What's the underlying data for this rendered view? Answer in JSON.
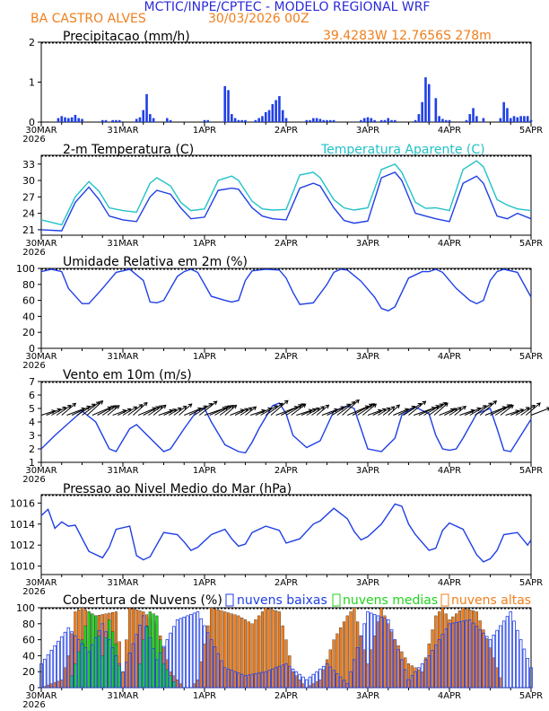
{
  "header": {
    "title": "MCTIC/INPE/CPTEC - MODELO REGIONAL WRF",
    "location": "BA CASTRO ALVES",
    "run": "30/03/2026 00Z",
    "coords": "39.4283W 12.7656S 278m"
  },
  "colors": {
    "blue": "#1f3fe6",
    "orange": "#f07f1e",
    "cyan": "#22c2c8",
    "green": "#22d31e",
    "black": "#000000",
    "title": "#2a2ad8"
  },
  "x_labels": [
    "30MAR",
    "31MAR",
    "1APR",
    "2APR",
    "3APR",
    "4APR",
    "5APR"
  ],
  "year_label": "2026",
  "chart_data": [
    {
      "type": "bar",
      "title": "Precipitacao (mm/h)",
      "ylim": [
        0,
        2
      ],
      "yticks": [
        0,
        1,
        2
      ],
      "hours": [
        5,
        6,
        7,
        8,
        9,
        10,
        11,
        12,
        18,
        19,
        21,
        22,
        23,
        28,
        29,
        30,
        31,
        32,
        33,
        37,
        38,
        48,
        49,
        54,
        55,
        56,
        57,
        58,
        59,
        60,
        63,
        64,
        65,
        66,
        67,
        68,
        69,
        70,
        71,
        72,
        78,
        79,
        80,
        81,
        82,
        83,
        84,
        85,
        86,
        94,
        95,
        96,
        97,
        98,
        100,
        101,
        102,
        103,
        104,
        110,
        111,
        112,
        113,
        114,
        116,
        117,
        118,
        119,
        120,
        125,
        126,
        127,
        128,
        130,
        135,
        136,
        137,
        138,
        139,
        140,
        141,
        142,
        143,
        144
      ],
      "values": [
        0.1,
        0.15,
        0.12,
        0.1,
        0.12,
        0.18,
        0.1,
        0.08,
        0.05,
        0.05,
        0.05,
        0.05,
        0.05,
        0.08,
        0.12,
        0.3,
        0.7,
        0.2,
        0.1,
        0.1,
        0.05,
        0.05,
        0.05,
        0.9,
        0.8,
        0.2,
        0.1,
        0.05,
        0.05,
        0.05,
        0.05,
        0.1,
        0.15,
        0.25,
        0.3,
        0.45,
        0.55,
        0.65,
        0.3,
        0.1,
        0.05,
        0.05,
        0.1,
        0.1,
        0.08,
        0.05,
        0.05,
        0.05,
        0.05,
        0.05,
        0.1,
        0.12,
        0.1,
        0.05,
        0.05,
        0.05,
        0.1,
        0.05,
        0.05,
        0.05,
        0.2,
        0.5,
        1.12,
        0.95,
        0.6,
        0.15,
        0.08,
        0.05,
        0.05,
        0.05,
        0.2,
        0.35,
        0.15,
        0.1,
        0.1,
        0.5,
        0.35,
        0.1,
        0.15,
        0.12,
        0.15,
        0.15,
        0.15,
        0.05
      ]
    },
    {
      "type": "line",
      "title": "2-m Temperatura (C)",
      "legend": "Temperatura Aparente (C)",
      "ylim": [
        20,
        34.6
      ],
      "yticks": [
        21,
        24,
        27,
        30,
        33
      ],
      "series": [
        {
          "name": "2-m Temperatura (C)",
          "color": "blue",
          "x": [
            0,
            6,
            10,
            14,
            17,
            20,
            24,
            28,
            32,
            34,
            38,
            41,
            44,
            48,
            52,
            56,
            58,
            62,
            65,
            68,
            72,
            76,
            80,
            82,
            86,
            89,
            92,
            96,
            100,
            104,
            106,
            110,
            113,
            116,
            120,
            124,
            128,
            130,
            134,
            137,
            140,
            144
          ],
          "values": [
            21.0,
            20.8,
            26.0,
            28.8,
            26.5,
            23.5,
            22.8,
            22.5,
            27.0,
            28.2,
            27.5,
            25.0,
            23.0,
            23.3,
            28.2,
            28.6,
            28.4,
            25.0,
            23.5,
            23.0,
            22.8,
            28.6,
            29.5,
            29.0,
            25.0,
            22.7,
            22.2,
            22.6,
            30.5,
            31.5,
            30.0,
            24.0,
            23.5,
            23.0,
            22.5,
            29.5,
            30.8,
            29.5,
            23.5,
            23.0,
            24.0,
            23.0
          ]
        },
        {
          "name": "Temperatura Aparente (C)",
          "color": "cyan",
          "x": [
            0,
            6,
            10,
            14,
            17,
            20,
            24,
            28,
            32,
            34,
            38,
            41,
            44,
            48,
            52,
            56,
            58,
            62,
            65,
            68,
            72,
            76,
            80,
            82,
            86,
            89,
            92,
            96,
            100,
            104,
            106,
            110,
            113,
            116,
            120,
            124,
            128,
            130,
            134,
            137,
            140,
            144
          ],
          "values": [
            22.8,
            21.9,
            27.0,
            29.8,
            28.0,
            25.0,
            24.5,
            24.2,
            29.5,
            30.5,
            29.0,
            26.0,
            24.5,
            24.8,
            30.0,
            30.8,
            30.0,
            26.2,
            24.8,
            24.6,
            24.7,
            31.0,
            31.5,
            30.5,
            26.5,
            25.0,
            24.6,
            25.0,
            32.0,
            33.0,
            31.5,
            26.0,
            24.9,
            25.0,
            24.5,
            32.0,
            33.6,
            32.5,
            26.5,
            25.5,
            24.8,
            24.5
          ]
        }
      ]
    },
    {
      "type": "line",
      "title": "Umidade Relativa em 2m (%)",
      "ylim": [
        0,
        100
      ],
      "yticks": [
        0,
        20,
        40,
        60,
        80,
        100
      ],
      "series": [
        {
          "name": "Umidade Relativa em 2m (%)",
          "color": "blue",
          "x": [
            0,
            3,
            6,
            8,
            12,
            14,
            18,
            22,
            26,
            30,
            32,
            34,
            36,
            40,
            42,
            44,
            46,
            50,
            54,
            56,
            58,
            60,
            62,
            66,
            70,
            72,
            74,
            76,
            80,
            84,
            86,
            88,
            90,
            94,
            98,
            100,
            102,
            104,
            108,
            112,
            114,
            116,
            118,
            122,
            126,
            128,
            130,
            132,
            134,
            136,
            140,
            144
          ],
          "values": [
            96,
            99,
            96,
            75,
            56,
            56,
            75,
            95,
            99,
            85,
            58,
            57,
            60,
            90,
            96,
            99,
            95,
            65,
            60,
            58,
            60,
            85,
            97,
            99,
            98,
            88,
            70,
            55,
            57,
            80,
            95,
            99,
            98,
            84,
            64,
            50,
            47,
            52,
            88,
            96,
            96,
            99,
            95,
            75,
            60,
            56,
            60,
            85,
            96,
            99,
            95,
            64
          ]
        }
      ]
    },
    {
      "type": "line",
      "title": "Vento em 10m (m/s)",
      "ylim": [
        1,
        7
      ],
      "yticks": [
        1,
        2,
        3,
        4,
        5,
        6,
        7
      ],
      "series": [
        {
          "name": "Vento em 10m (m/s)",
          "color": "blue",
          "x": [
            0,
            4,
            8,
            12,
            16,
            20,
            22,
            26,
            28,
            32,
            36,
            38,
            42,
            46,
            48,
            50,
            54,
            58,
            60,
            62,
            64,
            68,
            70,
            72,
            74,
            78,
            82,
            86,
            90,
            92,
            94,
            96,
            100,
            104,
            106,
            110,
            114,
            116,
            118,
            120,
            122,
            124,
            128,
            132,
            134,
            136,
            138,
            144
          ],
          "values": [
            2.0,
            3.0,
            3.9,
            4.8,
            4.0,
            2.0,
            1.8,
            3.5,
            3.8,
            2.8,
            1.8,
            2.0,
            3.5,
            4.9,
            5.0,
            4.0,
            2.3,
            1.8,
            1.7,
            2.5,
            3.5,
            5.2,
            5.4,
            4.6,
            3.0,
            2.1,
            2.6,
            4.8,
            5.2,
            5.0,
            3.5,
            2.0,
            1.8,
            2.8,
            4.5,
            5.1,
            4.6,
            3.0,
            2.0,
            1.9,
            2.0,
            2.8,
            4.6,
            5.0,
            3.5,
            1.9,
            1.8,
            4.2
          ]
        }
      ],
      "barbs": "wind direction arrows along 4.5 m/s reference"
    },
    {
      "type": "line",
      "title": "Pressao ao Nivel Medio do Mar (hPa)",
      "ylim": [
        1009.2,
        1016.8
      ],
      "yticks": [
        1010,
        1012,
        1014,
        1016
      ],
      "series": [
        {
          "name": "Pressao ao Nivel Medio do Mar (hPa)",
          "color": "blue",
          "x": [
            0,
            2,
            4,
            6,
            8,
            10,
            14,
            18,
            20,
            22,
            26,
            28,
            30,
            32,
            36,
            40,
            42,
            44,
            46,
            50,
            54,
            56,
            58,
            60,
            62,
            66,
            70,
            72,
            76,
            80,
            82,
            86,
            90,
            92,
            94,
            96,
            100,
            104,
            106,
            108,
            110,
            114,
            116,
            118,
            120,
            124,
            128,
            130,
            132,
            134,
            136,
            140,
            143,
            144
          ],
          "values": [
            1014.8,
            1015.4,
            1013.6,
            1014.2,
            1013.8,
            1013.9,
            1011.4,
            1010.8,
            1011.8,
            1013.5,
            1013.8,
            1011.0,
            1010.6,
            1010.9,
            1013.2,
            1013.0,
            1012.3,
            1011.5,
            1011.8,
            1013.0,
            1013.5,
            1012.6,
            1011.9,
            1012.1,
            1013.2,
            1013.8,
            1013.4,
            1012.2,
            1012.6,
            1014.0,
            1014.3,
            1015.5,
            1014.5,
            1013.3,
            1012.5,
            1012.8,
            1014.0,
            1015.9,
            1015.7,
            1014.0,
            1013.0,
            1011.5,
            1011.7,
            1013.4,
            1014.1,
            1013.5,
            1011.1,
            1010.4,
            1010.7,
            1011.5,
            1013.0,
            1013.2,
            1012.0,
            1012.5
          ]
        }
      ]
    },
    {
      "type": "bar",
      "title": "Cobertura de Nuvens (%)",
      "ylim": [
        0,
        100
      ],
      "yticks": [
        0,
        20,
        40,
        60,
        80,
        100
      ],
      "series": [
        {
          "name": "nuvens baixas",
          "color": "blue",
          "x": [
            0,
            8,
            14,
            18,
            24,
            30,
            34,
            40,
            46,
            54,
            60,
            66,
            72,
            78,
            84,
            90,
            96,
            102,
            108,
            114,
            120,
            126,
            132,
            138,
            144
          ],
          "values": [
            30,
            75,
            45,
            80,
            20,
            90,
            35,
            85,
            95,
            25,
            15,
            20,
            30,
            10,
            30,
            5,
            95,
            85,
            10,
            40,
            80,
            85,
            60,
            95,
            25
          ]
        },
        {
          "name": "nuvens medias",
          "color": "green",
          "x": [
            0,
            8,
            12,
            14,
            16,
            18,
            20,
            22,
            24,
            28,
            30,
            32,
            34,
            36,
            40,
            48,
            144
          ],
          "values": [
            0,
            0,
            60,
            95,
            90,
            40,
            85,
            55,
            0,
            0,
            60,
            95,
            90,
            30,
            0,
            0,
            0
          ]
        },
        {
          "name": "nuvens altas",
          "color": "orange",
          "x": [
            0,
            6,
            8,
            10,
            12,
            16,
            22,
            24,
            26,
            30,
            34,
            38,
            42,
            44,
            46,
            50,
            54,
            58,
            62,
            66,
            70,
            72,
            74,
            78,
            82,
            86,
            90,
            92,
            96,
            100,
            104,
            108,
            112,
            116,
            118,
            120,
            124,
            128,
            132,
            136,
            140,
            144
          ],
          "values": [
            0,
            10,
            40,
            95,
            100,
            90,
            95,
            20,
            100,
            95,
            80,
            20,
            0,
            0,
            10,
            100,
            95,
            90,
            80,
            100,
            95,
            60,
            20,
            0,
            10,
            60,
            90,
            100,
            30,
            100,
            60,
            30,
            20,
            90,
            100,
            85,
            100,
            95,
            50,
            0,
            0,
            0
          ]
        }
      ]
    }
  ]
}
